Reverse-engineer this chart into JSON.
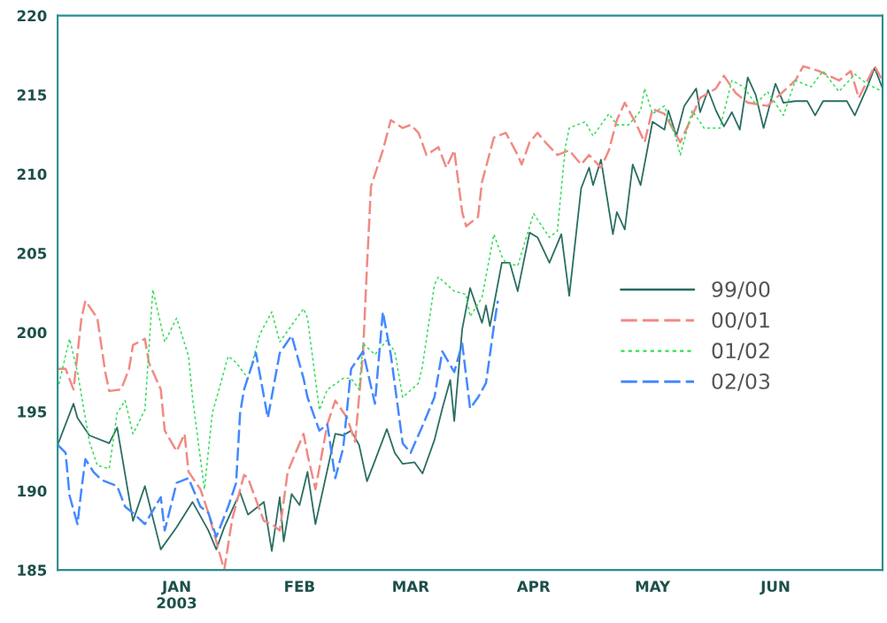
{
  "chart_data": {
    "type": "line",
    "xlim": [
      "2002-12-02",
      "2003-06-28"
    ],
    "xticks": [
      {
        "value": "2003-01-01",
        "label": "JAN\n2003"
      },
      {
        "value": "2003-02-01",
        "label": "FEB"
      },
      {
        "value": "2003-03-01",
        "label": "MAR"
      },
      {
        "value": "2003-04-01",
        "label": "APR"
      },
      {
        "value": "2003-05-01",
        "label": "MAY"
      },
      {
        "value": "2003-06-01",
        "label": "JUN"
      }
    ],
    "ylim": [
      185,
      220
    ],
    "yticks": [
      185,
      190,
      195,
      200,
      205,
      210,
      215,
      220
    ],
    "grid": false,
    "legend": "right",
    "series": [
      {
        "name": "99/00",
        "color": "#2a6e62",
        "line_style": "solid",
        "x": [
          "2002-12-02",
          "2002-12-06",
          "2002-12-07",
          "2002-12-10",
          "2002-12-15",
          "2002-12-17",
          "2002-12-21",
          "2002-12-24",
          "2002-12-28",
          "2003-01-01",
          "2003-01-05",
          "2003-01-09",
          "2003-01-11",
          "2003-01-13",
          "2003-01-17",
          "2003-01-19",
          "2003-01-23",
          "2003-01-25",
          "2003-01-27",
          "2003-01-28",
          "2003-01-30",
          "2003-02-01",
          "2003-02-03",
          "2003-02-05",
          "2003-02-10",
          "2003-02-12",
          "2003-02-14",
          "2003-02-16",
          "2003-02-18",
          "2003-02-20",
          "2003-02-23",
          "2003-02-25",
          "2003-02-27",
          "2003-03-02",
          "2003-03-04",
          "2003-03-07",
          "2003-03-09",
          "2003-03-11",
          "2003-03-12",
          "2003-03-14",
          "2003-03-16",
          "2003-03-19",
          "2003-03-20",
          "2003-03-21",
          "2003-03-24",
          "2003-03-26",
          "2003-03-28",
          "2003-03-31",
          "2003-04-02",
          "2003-04-05",
          "2003-04-08",
          "2003-04-10",
          "2003-04-13",
          "2003-04-15",
          "2003-04-16",
          "2003-04-18",
          "2003-04-21",
          "2003-04-22",
          "2003-04-24",
          "2003-04-26",
          "2003-04-28",
          "2003-05-01",
          "2003-05-04",
          "2003-05-05",
          "2003-05-07",
          "2003-05-09",
          "2003-05-12",
          "2003-05-13",
          "2003-05-15",
          "2003-05-17",
          "2003-05-19",
          "2003-05-21",
          "2003-05-23",
          "2003-05-25",
          "2003-05-27",
          "2003-05-29",
          "2003-06-01",
          "2003-06-03",
          "2003-06-06",
          "2003-06-09",
          "2003-06-11",
          "2003-06-13",
          "2003-06-19",
          "2003-06-21",
          "2003-06-24",
          "2003-06-26",
          "2003-06-28"
        ],
        "values": [
          192.9,
          195.5,
          194.6,
          193.5,
          193.0,
          194.0,
          188.1,
          190.3,
          186.3,
          187.7,
          189.3,
          187.5,
          186.3,
          187.7,
          189.9,
          188.5,
          189.3,
          186.2,
          189.6,
          186.8,
          189.8,
          189.1,
          191.2,
          187.9,
          193.6,
          193.5,
          193.8,
          192.9,
          190.6,
          191.9,
          193.9,
          192.4,
          191.7,
          191.8,
          191.1,
          193.2,
          195.2,
          197.0,
          194.4,
          200.2,
          202.8,
          200.6,
          201.7,
          200.4,
          204.4,
          204.4,
          202.6,
          206.3,
          206.0,
          204.4,
          206.2,
          202.3,
          209.1,
          210.4,
          209.3,
          210.9,
          206.2,
          207.6,
          206.5,
          210.6,
          209.3,
          213.3,
          212.8,
          214.0,
          212.4,
          214.3,
          215.4,
          213.9,
          215.3,
          214.0,
          213.0,
          213.9,
          212.8,
          216.1,
          215.0,
          212.9,
          215.7,
          214.5,
          214.6,
          214.6,
          213.7,
          214.6,
          214.6,
          213.7,
          215.4,
          216.7,
          215.4
        ]
      },
      {
        "name": "00/01",
        "color": "#f08a84",
        "line_style": "dashed",
        "x": [
          "2002-12-02",
          "2002-12-04",
          "2002-12-06",
          "2002-12-08",
          "2002-12-09",
          "2002-12-12",
          "2002-12-14",
          "2002-12-15",
          "2002-12-18",
          "2002-12-20",
          "2002-12-21",
          "2002-12-24",
          "2002-12-25",
          "2002-12-28",
          "2002-12-29",
          "2003-01-01",
          "2003-01-03",
          "2003-01-04",
          "2003-01-07",
          "2003-01-09",
          "2003-01-13",
          "2003-01-15",
          "2003-01-18",
          "2003-01-19",
          "2003-01-23",
          "2003-01-25",
          "2003-01-27",
          "2003-01-29",
          "2003-02-02",
          "2003-02-03",
          "2003-02-05",
          "2003-02-08",
          "2003-02-10",
          "2003-02-13",
          "2003-02-15",
          "2003-02-17",
          "2003-02-18",
          "2003-02-19",
          "2003-02-22",
          "2003-02-24",
          "2003-02-27",
          "2003-03-01",
          "2003-03-03",
          "2003-03-05",
          "2003-03-08",
          "2003-03-10",
          "2003-03-12",
          "2003-03-14",
          "2003-03-15",
          "2003-03-18",
          "2003-03-19",
          "2003-03-22",
          "2003-03-25",
          "2003-03-28",
          "2003-03-29",
          "2003-03-31",
          "2003-04-02",
          "2003-04-04",
          "2003-04-07",
          "2003-04-10",
          "2003-04-13",
          "2003-04-15",
          "2003-04-18",
          "2003-04-20",
          "2003-04-22",
          "2003-04-24",
          "2003-04-27",
          "2003-04-29",
          "2003-05-01",
          "2003-05-04",
          "2003-05-08",
          "2003-05-10",
          "2003-05-13",
          "2003-05-17",
          "2003-05-19",
          "2003-05-22",
          "2003-05-25",
          "2003-05-30",
          "2003-06-06",
          "2003-06-08",
          "2003-06-12",
          "2003-06-17",
          "2003-06-20",
          "2003-06-22",
          "2003-06-26",
          "2003-06-28"
        ],
        "values": [
          197.7,
          197.7,
          196.4,
          200.9,
          202.0,
          200.9,
          197.5,
          196.3,
          196.4,
          197.7,
          199.2,
          199.6,
          198.1,
          196.4,
          193.8,
          192.5,
          193.6,
          191.2,
          190.1,
          188.6,
          185.0,
          188.2,
          191.0,
          190.8,
          188.1,
          187.9,
          187.5,
          191.2,
          193.6,
          192.3,
          190.1,
          194.2,
          195.7,
          194.6,
          193.1,
          198.7,
          204.2,
          209.2,
          211.5,
          213.4,
          212.9,
          213.1,
          212.6,
          211.2,
          211.7,
          210.4,
          211.5,
          207.6,
          206.7,
          207.3,
          209.5,
          212.3,
          212.6,
          211.2,
          210.6,
          212.0,
          212.6,
          212.0,
          211.2,
          211.5,
          210.6,
          211.2,
          210.4,
          211.5,
          213.4,
          214.5,
          213.1,
          212.0,
          214.1,
          213.8,
          212.0,
          213.1,
          214.8,
          215.4,
          216.2,
          215.1,
          214.5,
          214.3,
          215.9,
          216.8,
          216.5,
          215.9,
          216.5,
          214.8,
          216.8,
          215.9
        ]
      },
      {
        "name": "01/02",
        "color": "#33dd55",
        "line_style": "dotted",
        "x": [
          "2002-12-02",
          "2002-12-05",
          "2002-12-07",
          "2002-12-10",
          "2002-12-12",
          "2002-12-15",
          "2002-12-17",
          "2002-12-19",
          "2002-12-21",
          "2002-12-24",
          "2002-12-26",
          "2002-12-29",
          "2003-01-01",
          "2003-01-04",
          "2003-01-05",
          "2003-01-08",
          "2003-01-10",
          "2003-01-14",
          "2003-01-16",
          "2003-01-19",
          "2003-01-22",
          "2003-01-25",
          "2003-01-27",
          "2003-02-02",
          "2003-02-03",
          "2003-02-06",
          "2003-02-08",
          "2003-02-12",
          "2003-02-14",
          "2003-02-16",
          "2003-02-17",
          "2003-02-20",
          "2003-02-23",
          "2003-02-25",
          "2003-02-27",
          "2003-03-03",
          "2003-03-04",
          "2003-03-07",
          "2003-03-08",
          "2003-03-12",
          "2003-03-15",
          "2003-03-16",
          "2003-03-19",
          "2003-03-22",
          "2003-03-24",
          "2003-03-25",
          "2003-03-28",
          "2003-04-01",
          "2003-04-05",
          "2003-04-07",
          "2003-04-09",
          "2003-04-10",
          "2003-04-14",
          "2003-04-16",
          "2003-04-20",
          "2003-04-22",
          "2003-04-25",
          "2003-04-28",
          "2003-04-29",
          "2003-05-01",
          "2003-05-04",
          "2003-05-07",
          "2003-05-08",
          "2003-05-11",
          "2003-05-14",
          "2003-05-18",
          "2003-05-21",
          "2003-05-24",
          "2003-05-27",
          "2003-05-30",
          "2003-06-03",
          "2003-06-06",
          "2003-06-10",
          "2003-06-13",
          "2003-06-17",
          "2003-06-21",
          "2003-06-24",
          "2003-06-28"
        ],
        "values": [
          196.4,
          199.6,
          197.5,
          193.1,
          191.6,
          191.4,
          194.9,
          195.7,
          193.6,
          195.1,
          202.7,
          199.4,
          200.9,
          198.5,
          195.9,
          190.1,
          194.9,
          198.5,
          198.1,
          197.1,
          199.9,
          201.3,
          199.4,
          201.5,
          200.9,
          195.1,
          196.4,
          197.1,
          197.1,
          196.4,
          199.3,
          198.6,
          199.5,
          198.8,
          195.9,
          196.8,
          197.9,
          203.0,
          203.5,
          202.6,
          202.4,
          201.0,
          202.2,
          206.2,
          204.8,
          204.4,
          204.2,
          207.5,
          206.0,
          206.4,
          211.7,
          212.9,
          213.3,
          212.4,
          213.8,
          213.1,
          213.1,
          214.0,
          215.4,
          213.8,
          214.3,
          212.2,
          211.2,
          214.0,
          212.9,
          212.9,
          215.9,
          215.5,
          214.4,
          215.2,
          213.7,
          215.9,
          215.5,
          216.5,
          215.2,
          216.3,
          215.7,
          215.2
        ]
      },
      {
        "name": "02/03",
        "color": "#4488ff",
        "line_style": "dashed",
        "x": [
          "2002-12-02",
          "2002-12-04",
          "2002-12-05",
          "2002-12-07",
          "2002-12-08",
          "2002-12-09",
          "2002-12-11",
          "2002-12-13",
          "2002-12-17",
          "2002-12-19",
          "2002-12-21",
          "2002-12-24",
          "2002-12-28",
          "2002-12-29",
          "2003-01-01",
          "2003-01-04",
          "2003-01-07",
          "2003-01-09",
          "2003-01-11",
          "2003-01-14",
          "2003-01-16",
          "2003-01-17",
          "2003-01-18",
          "2003-01-21",
          "2003-01-24",
          "2003-01-27",
          "2003-01-30",
          "2003-02-02",
          "2003-02-03",
          "2003-02-06",
          "2003-02-08",
          "2003-02-10",
          "2003-02-12",
          "2003-02-14",
          "2003-02-17",
          "2003-02-20",
          "2003-02-22",
          "2003-02-24",
          "2003-02-27",
          "2003-03-01",
          "2003-03-04",
          "2003-03-07",
          "2003-03-09",
          "2003-03-12",
          "2003-03-14",
          "2003-03-16",
          "2003-03-18",
          "2003-03-20",
          "2003-03-22",
          "2003-03-23"
        ],
        "values": [
          192.9,
          192.4,
          189.7,
          187.9,
          190.1,
          192.0,
          191.2,
          190.7,
          190.3,
          189.0,
          188.6,
          187.9,
          189.6,
          187.5,
          190.5,
          190.8,
          189.0,
          188.6,
          187.1,
          189.0,
          190.5,
          194.9,
          196.4,
          198.7,
          194.6,
          198.7,
          199.8,
          197.1,
          195.9,
          193.8,
          194.2,
          190.8,
          192.7,
          197.7,
          198.8,
          195.5,
          201.3,
          198.6,
          193.0,
          192.4,
          194.1,
          195.9,
          198.8,
          197.5,
          199.3,
          195.2,
          195.9,
          196.8,
          200.4,
          202.0
        ]
      }
    ]
  }
}
